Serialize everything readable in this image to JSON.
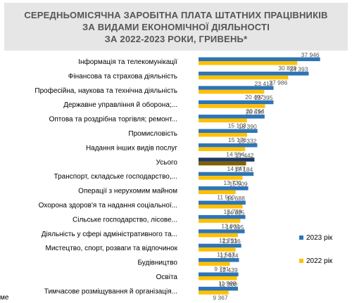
{
  "title_lines": [
    "СЕРЕДНЬОМІСЯЧНА ЗАРОБІТНА ПЛАТА ШТАТНИХ ПРАЦІВНИКІВ",
    "ЗА ВИДАМИ ЕКОНОМІЧНОЇ ДІЯЛЬНОСТІ",
    "ЗА 2022-2023 РОКИ, ГРИВЕНЬ*"
  ],
  "stray_text": "ме",
  "colors": {
    "series_2023": "#2e75b6",
    "series_2022": "#ffc000",
    "total_2023": "#1f3864",
    "total_2022": "#806000",
    "title_bg": "#e6e6e6"
  },
  "chart_data": {
    "type": "bar",
    "orientation": "horizontal",
    "title": "СЕРЕДНЬОМІСЯЧНА ЗАРОБІТНА ПЛАТА ШТАТНИХ ПРАЦІВНИКІВ ЗА ВИДАМИ ЕКОНОМІЧНОЇ ДІЯЛЬНОСТІ ЗА 2022-2023 РОКИ, ГРИВЕНЬ*",
    "legend_position": "right",
    "grid": false,
    "xlim": [
      0,
      40000
    ],
    "categories": [
      "Інформація та телекомунікації",
      "Фінансова та страхова діяльність",
      "Професійна, наукова та технічна діяльність",
      "Державне управління й оборона;...",
      "Оптова та роздрібна торгівля; ремонт...",
      "Промисловість",
      "Надання інших видів послуг",
      "Усього",
      "Транспорт, складське господарство,...",
      "Операції з нерухомим майном",
      "Охорона здоров'я та надання соціальної...",
      "Сільське господарство, лісове...",
      "Діяльність у сфері адміністративного та...",
      "Мистецтво, спорт, розваги та відпочинок",
      "Будівництво",
      "Освіта",
      "Тимчасове розміщування й організація..."
    ],
    "highlight_category": "Усього",
    "series": [
      {
        "name": "2023 рік",
        "values": [
          37946,
          34393,
          23413,
          23395,
          20630,
          18390,
          18332,
          17442,
          17184,
          15509,
          14688,
          14625,
          14395,
          13336,
          12634,
          12439,
          12300
        ],
        "labels": [
          "37 946",
          "34 393",
          "23 413",
          "23 395",
          "20 630",
          "18 390",
          "18 332",
          "17 442",
          "17 184",
          "15 509",
          "14 688",
          "14 625",
          "14 395",
          "13 336",
          "12 634",
          "12 439",
          "12 300"
        ]
      },
      {
        "name": "2022 рік",
        "values": [
          30829,
          27986,
          20497,
          20764,
          15103,
          15176,
          14554,
          14847,
          13731,
          11560,
          13738,
          13061,
          12291,
          11567,
          9781,
          11999,
          9367
        ],
        "labels": [
          "30 829",
          "27 986",
          "20 497",
          "20 764",
          "15 103",
          "15 176",
          "14 554",
          "14 847",
          "13 731",
          "11 560",
          "13 738",
          "13 061",
          "12 291",
          "11 567",
          "9 781",
          "11 999",
          "9 367"
        ]
      }
    ]
  }
}
